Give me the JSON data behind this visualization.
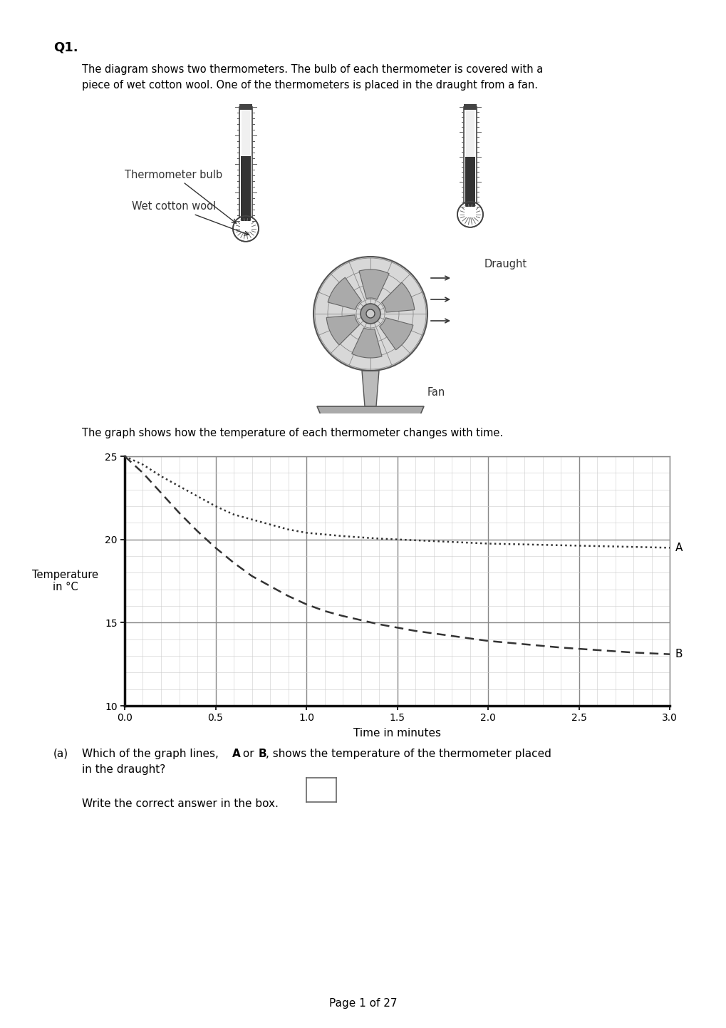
{
  "title": "Q1.",
  "intro_text1": "The diagram shows two thermometers. The bulb of each thermometer is covered with a",
  "intro_text2": "piece of wet cotton wool. One of the thermometers is placed in the draught from a fan.",
  "graph_intro": "The graph shows how the temperature of each thermometer changes with time.",
  "xlabel": "Time in minutes",
  "ylabel": "Temperature\nin °C",
  "xlim": [
    0.0,
    3.0
  ],
  "ylim": [
    10,
    25
  ],
  "xticks": [
    0.0,
    0.5,
    1.0,
    1.5,
    2.0,
    2.5,
    3.0
  ],
  "yticks": [
    10,
    15,
    20,
    25
  ],
  "curve_A_x": [
    0.0,
    0.1,
    0.2,
    0.3,
    0.4,
    0.5,
    0.6,
    0.7,
    0.8,
    0.9,
    1.0,
    1.1,
    1.2,
    1.4,
    1.6,
    1.8,
    2.0,
    2.2,
    2.4,
    2.6,
    2.8,
    3.0
  ],
  "curve_A_y": [
    25.0,
    24.5,
    23.8,
    23.2,
    22.6,
    22.0,
    21.5,
    21.2,
    20.9,
    20.6,
    20.4,
    20.3,
    20.2,
    20.05,
    19.95,
    19.85,
    19.75,
    19.7,
    19.65,
    19.6,
    19.55,
    19.5
  ],
  "curve_B_x": [
    0.0,
    0.1,
    0.2,
    0.3,
    0.4,
    0.5,
    0.6,
    0.7,
    0.8,
    0.9,
    1.0,
    1.1,
    1.2,
    1.4,
    1.6,
    1.8,
    2.0,
    2.2,
    2.4,
    2.6,
    2.8,
    3.0
  ],
  "curve_B_y": [
    25.0,
    24.0,
    22.8,
    21.6,
    20.5,
    19.5,
    18.6,
    17.8,
    17.2,
    16.6,
    16.1,
    15.7,
    15.4,
    14.9,
    14.5,
    14.2,
    13.9,
    13.7,
    13.5,
    13.35,
    13.2,
    13.1
  ],
  "label_A": "A",
  "label_B": "B",
  "bg_color": "#ffffff",
  "page_footer": "Page 1 of 27"
}
